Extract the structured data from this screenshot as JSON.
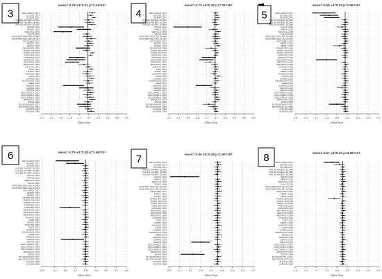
{
  "studies": [
    "WEYGANDT 2017",
    "DOCHE 2017",
    "DOCHE 2017",
    "VAN DE PAVERT 2015#1",
    "VAN DE PAVERT 2015#2",
    "VAN DE PAVERT 2015#3",
    "SPANO 2016",
    "SPANO 2016",
    "SERULLE 2016",
    "SALAS 2016",
    "SANCHEZ-SEGURA 2014#2",
    "SANCHEZ-SEGURA 2014#1",
    "RICCIARDI 2017",
    "PERRY 2015",
    "PERRY 2015",
    "PINNINTER 2009",
    "PARIS 2014/7#5",
    "PARIS 2014/7#4",
    "MORGEN 2016",
    "MORGEN 2016",
    "MESAROS 2012",
    "MESAROS 2009",
    "MESAROS 2009",
    "KNAUSS 2010",
    "JUNG 2011",
    "HENRY 2009",
    "HASKINS 2009",
    "GONZ 2015",
    "GOMES 2014",
    "DESHMUKH 2018",
    "DEEB 2014",
    "DEMAIN 2016",
    "CEPAIN 2014",
    "CEPAIN 2015",
    "CECCARELLI 2007",
    "CECCARELLI 2009",
    "CECCARELLI 2009",
    "BRANCATI 2014",
    "BOZIN 2008",
    "BLAZEJEWSKA 2017",
    "BALTRUSCHAT 2009",
    "AUDOIN 2006",
    "AUDOIN 2006"
  ],
  "shared_x_label": "Effect Size",
  "shared_ticks": [
    -2.5,
    -2.1,
    -1.7,
    -1.3,
    -0.9,
    -0.5,
    -0.1,
    0.3,
    0.7
  ],
  "chart_data": [
    {
      "type": "forest",
      "panel_label": "3",
      "title": "mean=-0.75 sd=0.41 p=1.44×10⁶",
      "xlabel": "Effect Size",
      "tick_labels": [
        "-2.7",
        "-2.3",
        "-1.9",
        "-1.5",
        "-1.1",
        "-0.7",
        "-0.3",
        "0.1",
        "0.5",
        "0.9"
      ],
      "xlim": [
        -2.7,
        0.9
      ],
      "mean": -0.75,
      "effects": [
        -0.55,
        -0.62,
        -0.48,
        -0.7,
        -0.66,
        -0.58,
        -1.45,
        -0.9,
        -1.8,
        -0.8,
        -0.75,
        -0.6,
        -0.7,
        -0.65,
        -0.72,
        -0.95,
        -0.8,
        -0.55,
        -0.62,
        -1.2,
        -1.25,
        -1.4,
        -0.9,
        -0.7,
        -0.6,
        -0.75,
        -0.8,
        -0.65,
        -0.58,
        -0.72,
        -0.68,
        -1.35,
        -0.8,
        -0.7,
        -0.62,
        -0.75,
        -0.65,
        -0.55,
        -0.72,
        -0.9,
        -0.85,
        -0.7,
        -0.6
      ],
      "ci_half": [
        0.15,
        0.12,
        0.1,
        0.2,
        0.2,
        0.18,
        0.55,
        0.3,
        0.4,
        0.15,
        0.2,
        0.22,
        0.18,
        0.15,
        0.2,
        0.3,
        0.15,
        0.12,
        0.1,
        0.35,
        0.4,
        0.3,
        0.25,
        0.15,
        0.12,
        0.18,
        0.2,
        0.2,
        0.15,
        0.2,
        0.18,
        0.45,
        0.3,
        0.22,
        0.15,
        0.2,
        0.2,
        0.15,
        0.18,
        0.3,
        0.25,
        0.18,
        0.15
      ]
    },
    {
      "type": "forest",
      "panel_label": "4",
      "title": "mean=-0.73 sd=0.32 p=7.33×10⁸",
      "xlabel": "Effect Size",
      "tick_labels": [
        "-2.7",
        "-2.3",
        "-1.9",
        "-1.5",
        "-1.1",
        "-0.7",
        "-0.3",
        "0.1",
        "0.5",
        "0.9"
      ],
      "xlim": [
        -2.7,
        0.9
      ],
      "mean": -0.73,
      "effects": [
        -0.7,
        -0.66,
        -0.62,
        -0.7,
        -0.75,
        -0.68,
        -1.9,
        -0.8,
        -0.6,
        -0.7,
        -0.7,
        -0.65,
        -0.72,
        -0.68,
        -0.6,
        -0.9,
        -0.72,
        -0.66,
        -0.7,
        -1.0,
        -1.1,
        -0.95,
        -0.75,
        -0.7,
        -0.68,
        -0.72,
        -0.78,
        -0.6,
        -0.7,
        -0.65,
        -0.72,
        -1.2,
        -0.75,
        -0.68,
        -0.7,
        -0.72,
        -0.66,
        -0.62,
        -0.74,
        -1.0,
        -0.8,
        -0.72,
        -0.68
      ],
      "ci_half": [
        0.1,
        0.1,
        0.1,
        0.15,
        0.12,
        0.12,
        0.6,
        0.2,
        0.12,
        0.12,
        0.15,
        0.15,
        0.12,
        0.12,
        0.1,
        0.25,
        0.12,
        0.1,
        0.1,
        0.3,
        0.3,
        0.25,
        0.15,
        0.12,
        0.1,
        0.12,
        0.15,
        0.15,
        0.12,
        0.12,
        0.12,
        0.35,
        0.2,
        0.15,
        0.12,
        0.15,
        0.12,
        0.1,
        0.12,
        0.25,
        0.2,
        0.12,
        0.1
      ]
    },
    {
      "type": "forest",
      "panel_label": "5",
      "title": "mean=-0.58 sd=0.33 p=1.66×10⁸",
      "xlabel": "Effect Size",
      "tick_labels": [
        "-2.5",
        "-2.1",
        "-1.7",
        "-1.3",
        "-0.9",
        "-0.5",
        "-0.1",
        "0.3",
        "0.7"
      ],
      "xlim": [
        -2.5,
        0.7
      ],
      "mean": -0.58,
      "effects": [
        -1.4,
        -1.2,
        -1.1,
        -0.6,
        -0.55,
        -0.6,
        -0.7,
        -0.58,
        -0.55,
        -0.6,
        -0.62,
        -0.58,
        -0.55,
        -0.6,
        -0.8,
        -0.62,
        -0.58,
        -0.55,
        -0.6,
        -0.58,
        -1.3,
        -0.62,
        -0.55,
        -0.58,
        -0.6,
        -0.55,
        -0.62,
        -0.58,
        -0.6,
        -0.55,
        -0.58,
        -0.6,
        -0.7,
        -0.58,
        -0.55,
        -0.6,
        -0.62,
        -0.55,
        -0.58,
        -0.9,
        -0.6,
        -0.58,
        -0.55
      ],
      "ci_half": [
        0.45,
        0.35,
        0.3,
        0.12,
        0.1,
        0.12,
        0.2,
        0.12,
        0.1,
        0.12,
        0.12,
        0.1,
        0.1,
        0.12,
        0.25,
        0.12,
        0.1,
        0.1,
        0.12,
        0.1,
        0.4,
        0.12,
        0.1,
        0.1,
        0.12,
        0.1,
        0.12,
        0.1,
        0.12,
        0.1,
        0.1,
        0.12,
        0.2,
        0.1,
        0.1,
        0.12,
        0.12,
        0.1,
        0.1,
        0.3,
        0.12,
        0.1,
        0.1
      ]
    },
    {
      "type": "forest",
      "panel_label": "6",
      "title": "mean=-0.79 sd=0.36 p=1.56×10⁸",
      "xlabel": "Effect Size",
      "tick_labels": [
        "-2.5",
        "-2.0",
        "-1.6",
        "-1.2",
        "-0.8",
        "-0.4",
        "0.0",
        "0.4",
        "0.8"
      ],
      "xlim": [
        -2.5,
        0.8
      ],
      "mean": -0.79,
      "effects": [
        -1.5,
        -1.2,
        -0.8,
        -0.78,
        -0.82,
        -0.76,
        -0.8,
        -0.75,
        -0.82,
        -0.78,
        -0.8,
        -0.76,
        -0.82,
        -0.78,
        -0.8,
        -0.76,
        -0.82,
        -0.78,
        -0.8,
        -1.4,
        -0.82,
        -0.78,
        -0.8,
        -0.76,
        -0.82,
        -0.78,
        -0.8,
        -0.76,
        -0.82,
        -0.78,
        -0.8,
        -0.76,
        -1.3,
        -0.78,
        -0.8,
        -0.76,
        -0.82,
        -0.78,
        -0.8,
        -0.76,
        -0.82,
        -0.78,
        -0.8
      ],
      "ci_half": [
        0.45,
        0.35,
        0.12,
        0.1,
        0.12,
        0.1,
        0.12,
        0.1,
        0.12,
        0.1,
        0.12,
        0.1,
        0.12,
        0.1,
        0.12,
        0.1,
        0.12,
        0.1,
        0.12,
        0.4,
        0.12,
        0.1,
        0.12,
        0.1,
        0.12,
        0.1,
        0.12,
        0.1,
        0.12,
        0.1,
        0.12,
        0.1,
        0.45,
        0.1,
        0.12,
        0.1,
        0.12,
        0.1,
        0.12,
        0.1,
        0.12,
        0.1,
        0.12
      ]
    },
    {
      "type": "forest",
      "panel_label": "7",
      "title": "mean=-0.65 sd=0.39 p=1.60×10⁸",
      "xlabel": "Effect Size",
      "tick_labels": [
        "-2.5",
        "-2.1",
        "-1.7",
        "-1.3",
        "-0.9",
        "-0.5",
        "-0.1",
        "0.3",
        "0.7"
      ],
      "xlim": [
        -2.5,
        0.7
      ],
      "mean": -0.65,
      "effects": [
        -0.65,
        -0.62,
        -0.68,
        -0.66,
        -0.64,
        -0.7,
        -1.9,
        -0.66,
        -0.62,
        -0.68,
        -0.64,
        -0.66,
        -0.62,
        -0.68,
        -0.65,
        -0.7,
        -0.66,
        -0.62,
        -0.68,
        -0.64,
        -0.66,
        -0.62,
        -0.68,
        -0.65,
        -0.7,
        -0.66,
        -0.62,
        -0.68,
        -0.64,
        -0.66,
        -0.62,
        -0.68,
        -0.65,
        -1.3,
        -0.66,
        -0.62,
        -0.68,
        -0.64,
        -1.6,
        -0.62,
        -0.68,
        -0.65,
        -0.7
      ],
      "ci_half": [
        0.12,
        0.1,
        0.12,
        0.1,
        0.12,
        0.1,
        0.55,
        0.1,
        0.12,
        0.1,
        0.12,
        0.1,
        0.12,
        0.1,
        0.12,
        0.1,
        0.12,
        0.1,
        0.12,
        0.1,
        0.12,
        0.1,
        0.12,
        0.1,
        0.12,
        0.1,
        0.12,
        0.1,
        0.12,
        0.1,
        0.12,
        0.1,
        0.12,
        0.35,
        0.12,
        0.1,
        0.12,
        0.1,
        0.45,
        0.1,
        0.12,
        0.1,
        0.12
      ]
    },
    {
      "type": "forest",
      "panel_label": "8",
      "title": "mean=-0.67 sd=0.12 p=4.09×10⁸",
      "xlabel": "Effect Size",
      "tick_labels": [
        "-2.5",
        "-2.1",
        "-1.7",
        "-1.3",
        "-0.9",
        "-0.5",
        "-0.1",
        "0.3",
        "0.7"
      ],
      "xlim": [
        -2.5,
        0.7
      ],
      "mean": -0.67,
      "effects": [
        -1.1,
        -0.8,
        -0.66,
        -0.68,
        -0.64,
        -0.7,
        -0.66,
        -0.68,
        -0.64,
        -0.7,
        -0.66,
        -0.68,
        -0.64,
        -0.7,
        -0.66,
        -1.0,
        -0.64,
        -0.7,
        -0.66,
        -0.68,
        -0.64,
        -0.7,
        -0.66,
        -0.68,
        -0.64,
        -0.7,
        -0.66,
        -0.68,
        -0.64,
        -0.7,
        -0.66,
        -0.68,
        -0.64,
        -0.7,
        -0.66,
        -0.68,
        -0.64,
        -0.7,
        -0.66,
        -0.68,
        -0.64,
        -0.7,
        -0.66
      ],
      "ci_half": [
        0.3,
        0.2,
        0.1,
        0.1,
        0.1,
        0.1,
        0.1,
        0.1,
        0.1,
        0.1,
        0.1,
        0.1,
        0.1,
        0.1,
        0.1,
        0.25,
        0.1,
        0.1,
        0.1,
        0.1,
        0.1,
        0.1,
        0.1,
        0.1,
        0.1,
        0.1,
        0.1,
        0.1,
        0.1,
        0.1,
        0.1,
        0.1,
        0.1,
        0.1,
        0.1,
        0.1,
        0.1,
        0.1,
        0.1,
        0.1,
        0.1,
        0.1,
        0.1
      ]
    }
  ]
}
